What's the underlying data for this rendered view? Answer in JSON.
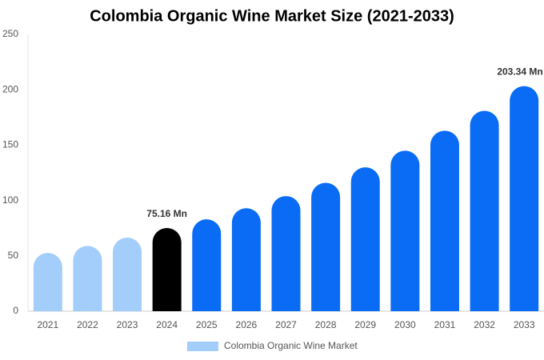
{
  "chart_data": {
    "type": "bar",
    "title": "Colombia Organic Wine Market Size (2021-2033)",
    "categories": [
      "2021",
      "2022",
      "2023",
      "2024",
      "2025",
      "2026",
      "2027",
      "2028",
      "2029",
      "2030",
      "2031",
      "2032",
      "2033"
    ],
    "series": [
      {
        "name": "Colombia Organic Wine Market",
        "color": "#a3cdfb",
        "values": [
          52.7,
          59,
          66.5,
          75.16,
          83,
          93,
          104,
          116,
          130,
          145,
          163,
          181,
          203.34
        ],
        "colors": [
          "#a3cdfb",
          "#a3cdfb",
          "#a3cdfb",
          "#000000",
          "#0a6cf5",
          "#0a6cf5",
          "#0a6cf5",
          "#0a6cf5",
          "#0a6cf5",
          "#0a6cf5",
          "#0a6cf5",
          "#0a6cf5",
          "#0a6cf5"
        ],
        "value_labels": [
          null,
          null,
          null,
          "75.16 Mn",
          null,
          null,
          null,
          null,
          null,
          null,
          null,
          null,
          "203.34 Mn"
        ]
      }
    ],
    "ylim": [
      0,
      250
    ],
    "yticks": [
      0,
      50,
      100,
      150,
      200,
      250
    ],
    "grid": false
  }
}
